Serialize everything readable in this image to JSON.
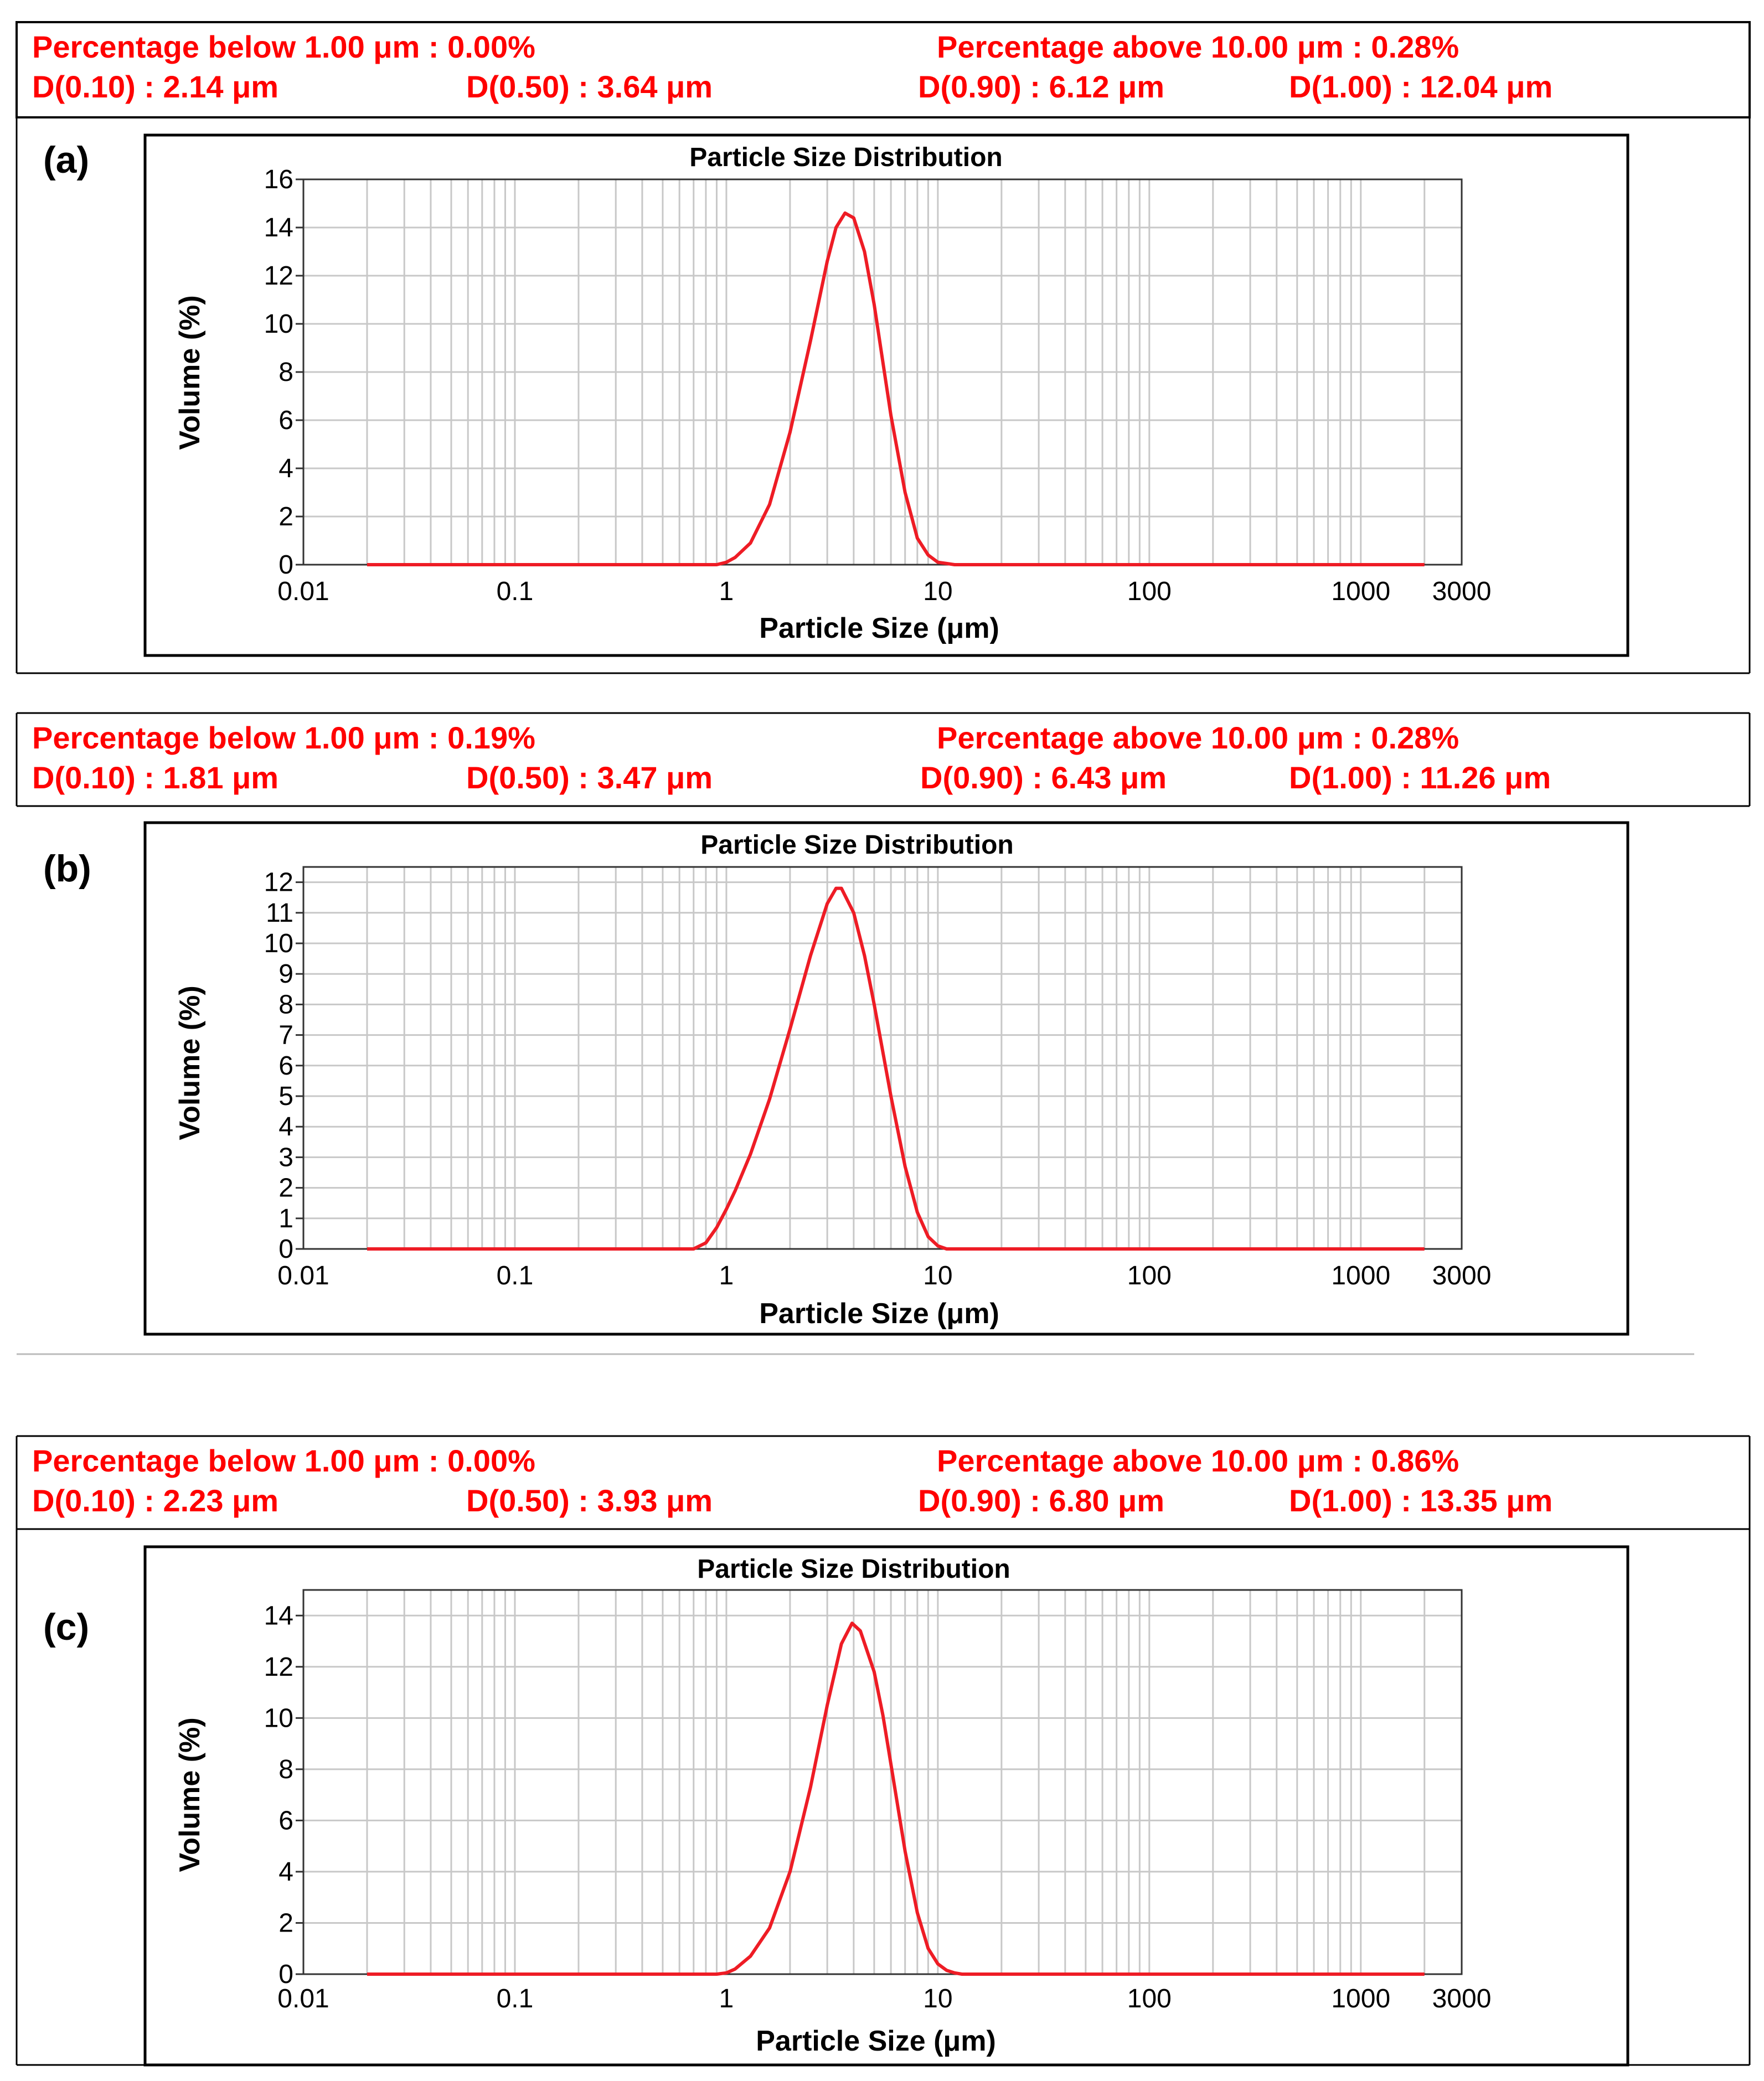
{
  "panels": [
    {
      "label": "(a)",
      "stats": {
        "below": "Percentage below 1.00 μm : 0.00%",
        "above": "Percentage above 10.00 μm : 0.28%",
        "d10": "D(0.10) : 2.14 μm",
        "d50": "D(0.50) : 3.64 μm",
        "d90": "D(0.90) : 6.12 μm",
        "d100": "D(1.00) : 12.04 μm"
      }
    },
    {
      "label": "(b)",
      "stats": {
        "below": "Percentage below 1.00 μm : 0.19%",
        "above": "Percentage above 10.00 μm : 0.28%",
        "d10": "D(0.10) : 1.81 μm",
        "d50": "D(0.50) : 3.47 μm",
        "d90": "D(0.90) : 6.43 μm",
        "d100": "D(1.00) : 11.26 μm"
      }
    },
    {
      "label": "(c)",
      "stats": {
        "below": "Percentage below 1.00 μm : 0.00%",
        "above": "Percentage above 10.00 μm : 0.86%",
        "d10": "D(0.10) : 2.23 μm",
        "d50": "D(0.50) : 3.93 μm",
        "d90": "D(0.90) : 6.80 μm",
        "d100": "D(1.00) : 13.35 μm"
      }
    }
  ],
  "colors": {
    "curve": "#ee1c25",
    "stat_text": "#ff0000",
    "grid": "#c8c8c8"
  },
  "chart_data": [
    {
      "type": "line",
      "title": "Particle Size Distribution",
      "xlabel": "Particle Size (μm)",
      "ylabel": "Volume (%)",
      "xscale": "log",
      "xlim": [
        0.01,
        3000
      ],
      "ylim": [
        0,
        16
      ],
      "yticks": [
        0,
        2,
        4,
        6,
        8,
        10,
        12,
        14,
        16
      ],
      "xticks": [
        0.01,
        0.1,
        1,
        10,
        100,
        1000,
        3000
      ],
      "xtick_labels": [
        "0.01",
        "0.1",
        "1",
        "10",
        "100",
        "1000",
        "3000"
      ],
      "series": [
        {
          "name": "Volume",
          "x": [
            0.02,
            0.1,
            0.5,
            0.9,
            1.0,
            1.1,
            1.3,
            1.6,
            2.0,
            2.5,
            3.0,
            3.3,
            3.64,
            4.0,
            4.5,
            5.0,
            6.0,
            7.0,
            8.0,
            9.0,
            10.0,
            11.0,
            12.0,
            20,
            100,
            1000,
            2000
          ],
          "y": [
            0,
            0,
            0,
            0,
            0.1,
            0.3,
            0.9,
            2.5,
            5.5,
            9.3,
            12.6,
            14.0,
            14.6,
            14.4,
            13.0,
            10.8,
            6.2,
            3.0,
            1.1,
            0.4,
            0.1,
            0.05,
            0,
            0,
            0,
            0,
            0
          ]
        }
      ]
    },
    {
      "type": "line",
      "title": "Particle Size Distribution",
      "xlabel": "Particle Size (μm)",
      "ylabel": "Volume (%)",
      "xscale": "log",
      "xlim": [
        0.01,
        3000
      ],
      "ylim": [
        0,
        12.5
      ],
      "yticks": [
        0,
        1,
        2,
        3,
        4,
        5,
        6,
        7,
        8,
        9,
        10,
        11,
        12
      ],
      "xticks": [
        0.01,
        0.1,
        1,
        10,
        100,
        1000,
        3000
      ],
      "xtick_labels": [
        "0.01",
        "0.1",
        "1",
        "10",
        "100",
        "1000",
        "3000"
      ],
      "series": [
        {
          "name": "Volume",
          "x": [
            0.02,
            0.1,
            0.5,
            0.7,
            0.8,
            0.9,
            1.0,
            1.1,
            1.3,
            1.6,
            2.0,
            2.5,
            3.0,
            3.3,
            3.5,
            4.0,
            4.5,
            5.0,
            6.0,
            7.0,
            8.0,
            9.0,
            10.0,
            11.0,
            12.0,
            20,
            100,
            1000,
            2000
          ],
          "y": [
            0,
            0,
            0,
            0,
            0.2,
            0.7,
            1.3,
            1.9,
            3.1,
            4.9,
            7.2,
            9.6,
            11.3,
            11.8,
            11.8,
            11.0,
            9.6,
            8.0,
            5.0,
            2.7,
            1.2,
            0.4,
            0.1,
            0,
            0,
            0,
            0,
            0,
            0
          ]
        }
      ]
    },
    {
      "type": "line",
      "title": "Particle Size Distribution",
      "xlabel": "Particle Size (μm)",
      "ylabel": "Volume (%)",
      "xscale": "log",
      "xlim": [
        0.01,
        3000
      ],
      "ylim": [
        0,
        15
      ],
      "yticks": [
        0,
        2,
        4,
        6,
        8,
        10,
        12,
        14
      ],
      "xticks": [
        0.01,
        0.1,
        1,
        10,
        100,
        1000,
        3000
      ],
      "xtick_labels": [
        "0.01",
        "0.1",
        "1",
        "10",
        "100",
        "1000",
        "3000"
      ],
      "series": [
        {
          "name": "Volume",
          "x": [
            0.02,
            0.1,
            0.5,
            0.9,
            1.0,
            1.1,
            1.3,
            1.6,
            2.0,
            2.5,
            3.0,
            3.5,
            3.93,
            4.3,
            5.0,
            5.5,
            6.0,
            7.0,
            8.0,
            9.0,
            10.0,
            11.0,
            12.0,
            13.0,
            20,
            100,
            1000,
            2000
          ],
          "y": [
            0,
            0,
            0,
            0,
            0.05,
            0.2,
            0.7,
            1.8,
            4.0,
            7.3,
            10.5,
            12.9,
            13.7,
            13.4,
            11.8,
            10.1,
            8.2,
            4.8,
            2.4,
            1.0,
            0.4,
            0.15,
            0.05,
            0,
            0,
            0,
            0,
            0
          ]
        }
      ]
    }
  ]
}
